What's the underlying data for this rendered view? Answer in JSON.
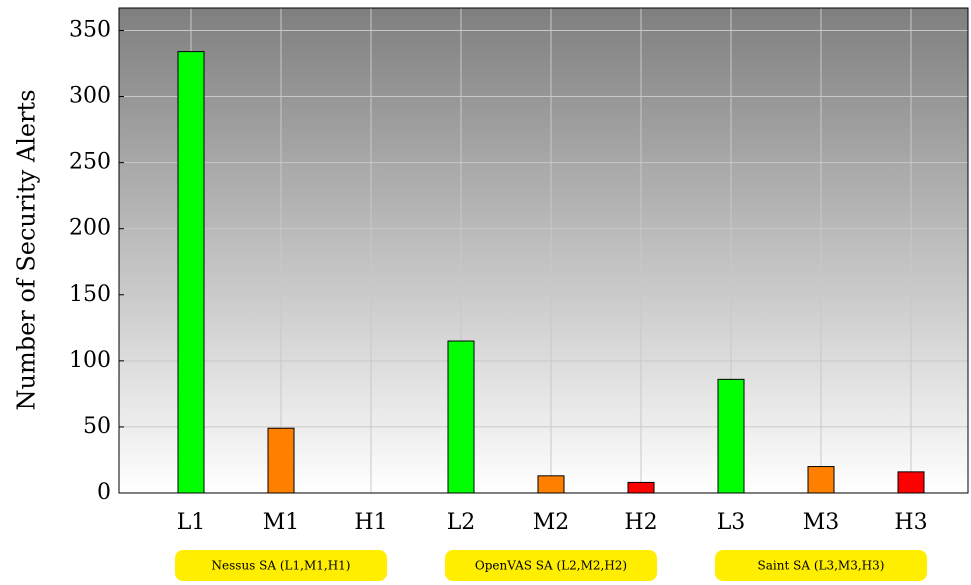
{
  "chart_data": {
    "type": "bar",
    "y_label": "Number of Security Alerts",
    "categories": [
      "L1",
      "M1",
      "H1",
      "L2",
      "M2",
      "H2",
      "L3",
      "M3",
      "H3"
    ],
    "values": [
      334,
      49,
      0,
      115,
      13,
      8,
      86,
      20,
      16
    ],
    "colors": [
      "#00ff00",
      "#ff8000",
      "#ff0000",
      "#00ff00",
      "#ff8000",
      "#ff0000",
      "#00ff00",
      "#ff8000",
      "#ff0000"
    ],
    "ylim": [
      0,
      367
    ],
    "yticks": [
      0,
      50,
      100,
      150,
      200,
      250,
      300,
      350
    ],
    "grid": true,
    "groups": [
      "Nessus SA (L1,M1,H1)",
      "OpenVAS SA (L2,M2,H2)",
      "Saint SA (L3,M3,H3)"
    ],
    "group_color": "#ffee00"
  }
}
